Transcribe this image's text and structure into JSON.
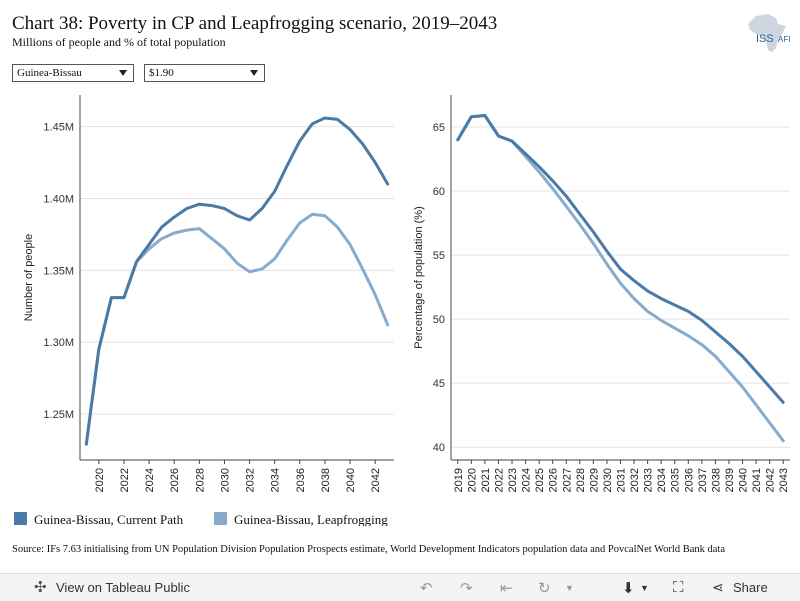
{
  "header": {
    "title": "Chart 38: Poverty in CP and Leapfrogging scenario, 2019–2043",
    "subtitle": "Millions of people and % of total population",
    "logo_text": "ISS",
    "logo_sub": "AFI"
  },
  "filters": {
    "country": "Guinea-Bissau",
    "poverty_line": "$1.90"
  },
  "colors": {
    "current_path": "#4a7aa7",
    "leapfrogging": "#88abcc"
  },
  "chart_data": [
    {
      "type": "line",
      "ylabel": "Number of people",
      "xlabel": "",
      "x": [
        2019,
        2020,
        2021,
        2022,
        2023,
        2024,
        2025,
        2026,
        2027,
        2028,
        2029,
        2030,
        2031,
        2032,
        2033,
        2034,
        2035,
        2036,
        2037,
        2038,
        2039,
        2040,
        2041,
        2042,
        2043
      ],
      "xlim": [
        2018.5,
        2043.5
      ],
      "xticks": [
        2020,
        2022,
        2024,
        2026,
        2028,
        2030,
        2032,
        2034,
        2036,
        2038,
        2040,
        2042
      ],
      "ylim": [
        1.218,
        1.472
      ],
      "yticks": [
        1.25,
        1.3,
        1.35,
        1.4,
        1.45
      ],
      "yticklabels": [
        "1.25M",
        "1.30M",
        "1.35M",
        "1.40M",
        "1.45M"
      ],
      "grid": true,
      "series": [
        {
          "name": "Guinea-Bissau, Current Path",
          "values": [
            1.229,
            1.295,
            1.331,
            1.331,
            1.356,
            1.368,
            1.38,
            1.387,
            1.393,
            1.396,
            1.395,
            1.393,
            1.388,
            1.385,
            1.393,
            1.405,
            1.423,
            1.44,
            1.452,
            1.456,
            1.455,
            1.448,
            1.438,
            1.425,
            1.41
          ]
        },
        {
          "name": "Guinea-Bissau, Leapfrogging",
          "values": [
            1.229,
            1.295,
            1.331,
            1.331,
            1.356,
            1.365,
            1.372,
            1.376,
            1.378,
            1.379,
            1.372,
            1.365,
            1.355,
            1.349,
            1.351,
            1.358,
            1.371,
            1.383,
            1.389,
            1.388,
            1.38,
            1.368,
            1.351,
            1.333,
            1.312
          ]
        }
      ]
    },
    {
      "type": "line",
      "ylabel": "Percentage of population (%)",
      "xlabel": "",
      "x": [
        2019,
        2020,
        2021,
        2022,
        2023,
        2024,
        2025,
        2026,
        2027,
        2028,
        2029,
        2030,
        2031,
        2032,
        2033,
        2034,
        2035,
        2036,
        2037,
        2038,
        2039,
        2040,
        2041,
        2042,
        2043
      ],
      "xlim": [
        2018.5,
        2043.5
      ],
      "xticks": [
        2019,
        2020,
        2021,
        2022,
        2023,
        2024,
        2025,
        2026,
        2027,
        2028,
        2029,
        2030,
        2031,
        2032,
        2033,
        2034,
        2035,
        2036,
        2037,
        2038,
        2039,
        2040,
        2041,
        2042,
        2043
      ],
      "ylim": [
        39.0,
        67.5
      ],
      "yticks": [
        40,
        45,
        50,
        55,
        60,
        65
      ],
      "yticklabels": [
        "40",
        "45",
        "50",
        "55",
        "60",
        "65"
      ],
      "grid": true,
      "series": [
        {
          "name": "Guinea-Bissau, Current Path",
          "values": [
            64.0,
            65.8,
            65.9,
            64.3,
            63.9,
            62.9,
            61.9,
            60.8,
            59.6,
            58.2,
            56.8,
            55.3,
            53.9,
            53.0,
            52.2,
            51.6,
            51.1,
            50.6,
            49.9,
            49.0,
            48.1,
            47.1,
            45.9,
            44.7,
            43.5
          ]
        },
        {
          "name": "Guinea-Bissau, Leapfrogging",
          "values": [
            64.0,
            65.8,
            65.9,
            64.3,
            63.9,
            62.7,
            61.5,
            60.2,
            58.8,
            57.4,
            55.9,
            54.3,
            52.8,
            51.6,
            50.6,
            49.9,
            49.3,
            48.7,
            48.0,
            47.1,
            45.9,
            44.7,
            43.3,
            41.9,
            40.5
          ]
        }
      ]
    }
  ],
  "legend": [
    {
      "label": "Guinea-Bissau, Current Path"
    },
    {
      "label": "Guinea-Bissau, Leapfrogging"
    }
  ],
  "source": "Source: IFs 7.63 initialising from UN Population Division Population Prospects estimate, World Development Indicators population data and PovcalNet World Bank data",
  "footer": {
    "view_label": "View on Tableau Public",
    "share_label": "Share"
  }
}
